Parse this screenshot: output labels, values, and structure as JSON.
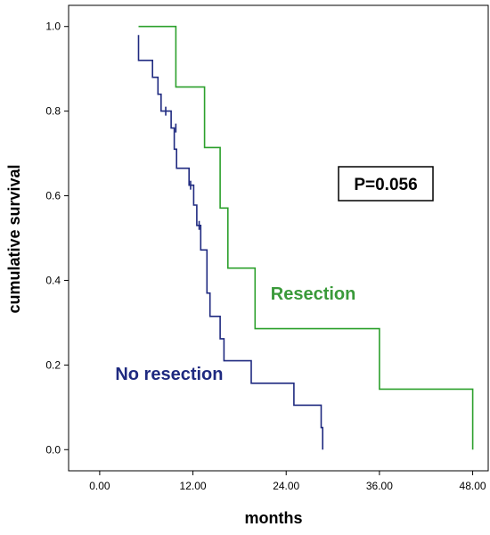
{
  "chart_data": {
    "type": "line",
    "step": true,
    "xlabel": "months",
    "ylabel": "cumulative survival",
    "xlim": [
      -4,
      50
    ],
    "ylim": [
      -0.05,
      1.05
    ],
    "xticks": [
      0,
      12,
      24,
      36,
      48
    ],
    "xtick_labels": [
      "0.00",
      "12.00",
      "24.00",
      "36.00",
      "48.00"
    ],
    "yticks": [
      0,
      0.2,
      0.4,
      0.6,
      0.8,
      1.0
    ],
    "ytick_labels": [
      "0.0",
      "0.2",
      "0.4",
      "0.6",
      "0.8",
      "1.0"
    ],
    "grid": false,
    "series": [
      {
        "name": "Resection",
        "color": "#2ca02c",
        "points": [
          [
            5,
            1.0
          ],
          [
            9.8,
            1.0
          ],
          [
            9.8,
            0.857
          ],
          [
            13.5,
            0.857
          ],
          [
            13.5,
            0.714
          ],
          [
            15.5,
            0.714
          ],
          [
            15.5,
            0.571
          ],
          [
            16.5,
            0.571
          ],
          [
            16.5,
            0.429
          ],
          [
            20,
            0.429
          ],
          [
            20,
            0.286
          ],
          [
            36,
            0.286
          ],
          [
            36,
            0.143
          ],
          [
            48,
            0.143
          ],
          [
            48,
            0.0
          ]
        ],
        "censored": []
      },
      {
        "name": "No resection",
        "color": "#1f2a80",
        "points": [
          [
            5,
            0.98
          ],
          [
            5,
            0.92
          ],
          [
            6.8,
            0.92
          ],
          [
            6.8,
            0.88
          ],
          [
            7.5,
            0.88
          ],
          [
            7.5,
            0.84
          ],
          [
            7.9,
            0.84
          ],
          [
            7.9,
            0.8
          ],
          [
            9.2,
            0.8
          ],
          [
            9.2,
            0.76
          ],
          [
            9.6,
            0.76
          ],
          [
            9.6,
            0.71
          ],
          [
            9.9,
            0.71
          ],
          [
            9.9,
            0.665
          ],
          [
            11.5,
            0.665
          ],
          [
            11.5,
            0.625
          ],
          [
            12.1,
            0.625
          ],
          [
            12.1,
            0.578
          ],
          [
            12.5,
            0.578
          ],
          [
            12.5,
            0.53
          ],
          [
            13,
            0.53
          ],
          [
            13,
            0.472
          ],
          [
            13.8,
            0.472
          ],
          [
            13.8,
            0.37
          ],
          [
            14.2,
            0.37
          ],
          [
            14.2,
            0.315
          ],
          [
            15.5,
            0.315
          ],
          [
            15.5,
            0.262
          ],
          [
            16,
            0.262
          ],
          [
            16,
            0.21
          ],
          [
            19.5,
            0.21
          ],
          [
            19.5,
            0.157
          ],
          [
            25,
            0.157
          ],
          [
            25,
            0.105
          ],
          [
            28.5,
            0.105
          ],
          [
            28.5,
            0.052
          ],
          [
            28.7,
            0.052
          ],
          [
            28.7,
            0.0
          ]
        ],
        "censored": [
          [
            8.5,
            0.8
          ],
          [
            9.8,
            0.76
          ],
          [
            11.7,
            0.625
          ],
          [
            12.8,
            0.53
          ]
        ]
      }
    ],
    "annotations": [
      {
        "text": "Resection",
        "color": "#3a9a3a",
        "x": 22,
        "y": 0.355
      },
      {
        "text": "No resection",
        "color": "#1f2a80",
        "x": 2,
        "y": 0.165
      }
    ],
    "p_value": "P=0.056"
  }
}
